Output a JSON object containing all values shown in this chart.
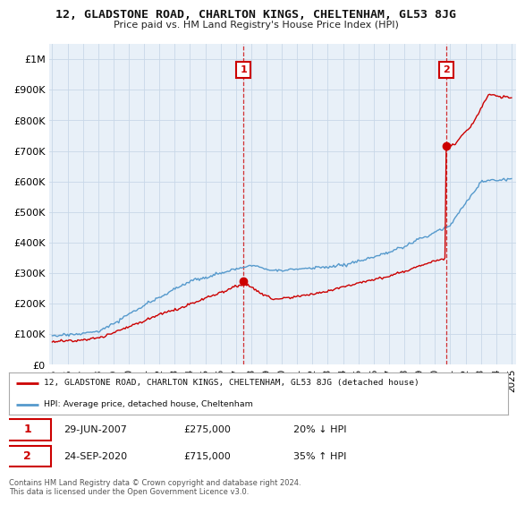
{
  "title": "12, GLADSTONE ROAD, CHARLTON KINGS, CHELTENHAM, GL53 8JG",
  "subtitle": "Price paid vs. HM Land Registry's House Price Index (HPI)",
  "ylabel_ticks": [
    "£0",
    "£100K",
    "£200K",
    "£300K",
    "£400K",
    "£500K",
    "£600K",
    "£700K",
    "£800K",
    "£900K",
    "£1M"
  ],
  "ytick_values": [
    0,
    100000,
    200000,
    300000,
    400000,
    500000,
    600000,
    700000,
    800000,
    900000,
    1000000
  ],
  "ylim": [
    0,
    1050000
  ],
  "xlim_start": 1994.8,
  "xlim_end": 2025.3,
  "red_color": "#cc0000",
  "blue_color": "#5599cc",
  "plot_bg_color": "#e8f0f8",
  "transaction1_x": 2007.49,
  "transaction1_y": 275000,
  "transaction2_x": 2020.73,
  "transaction2_y": 715000,
  "legend_label_red": "12, GLADSTONE ROAD, CHARLTON KINGS, CHELTENHAM, GL53 8JG (detached house)",
  "legend_label_blue": "HPI: Average price, detached house, Cheltenham",
  "annotation1_label": "1",
  "annotation2_label": "2",
  "info1_num": "1",
  "info1_date": "29-JUN-2007",
  "info1_price": "£275,000",
  "info1_hpi": "20% ↓ HPI",
  "info2_num": "2",
  "info2_date": "24-SEP-2020",
  "info2_price": "£715,000",
  "info2_hpi": "35% ↑ HPI",
  "footnote": "Contains HM Land Registry data © Crown copyright and database right 2024.\nThis data is licensed under the Open Government Licence v3.0.",
  "background_color": "#ffffff",
  "grid_color": "#c8d8e8"
}
